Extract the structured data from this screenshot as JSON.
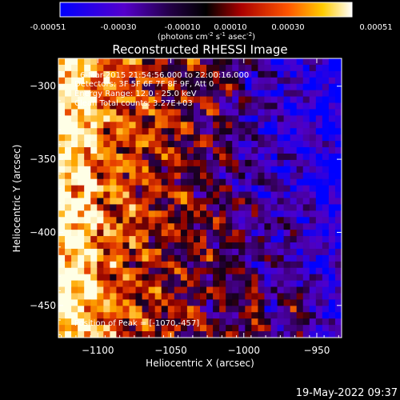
{
  "colorbar": {
    "ticks": [
      "-0.00051",
      "-0.00030",
      "-0.00010",
      "0.00010",
      "0.00030",
      "0.00051"
    ],
    "unit_parts": [
      "(photons cm",
      "-2",
      " s",
      "-1",
      " asec",
      "-2",
      ")"
    ]
  },
  "chart_data": {
    "type": "heatmap",
    "title": "Reconstructed RHESSI Image",
    "xlabel": "Heliocentric X (arcsec)",
    "ylabel": "Heliocentric Y (arcsec)",
    "xlim": [
      -1127,
      -933
    ],
    "ylim": [
      -472,
      -281
    ],
    "x_ticks": [
      {
        "value": -1100,
        "label": "−1100"
      },
      {
        "value": -1050,
        "label": "−1050"
      },
      {
        "value": -1000,
        "label": "−1000"
      },
      {
        "value": -950,
        "label": "−950"
      }
    ],
    "y_ticks": [
      {
        "value": -300,
        "label": "−300"
      },
      {
        "value": -350,
        "label": "−350"
      },
      {
        "value": -400,
        "label": "−400"
      },
      {
        "value": -450,
        "label": "−450"
      }
    ],
    "color_range": [
      -0.00051,
      0.00051
    ],
    "colormap": [
      "#0000ff",
      "#6600aa",
      "#000000",
      "#aa0000",
      "#ff6600",
      "#ffcc00",
      "#ffffff"
    ],
    "annotations": [
      "6-Mar-2015 21:54:56.000 to 22:00:16.000",
      "Detectors: 3F 5F 6F 7F 8F 9F, Att 0",
      "Energy Range: 12.0 - 25.0 keV",
      "Clean   Total counts: 3.27E+03"
    ],
    "peak_label": "Position of Peak = [-1070,-457]"
  },
  "timestamp": "19-May-2022 09:37"
}
